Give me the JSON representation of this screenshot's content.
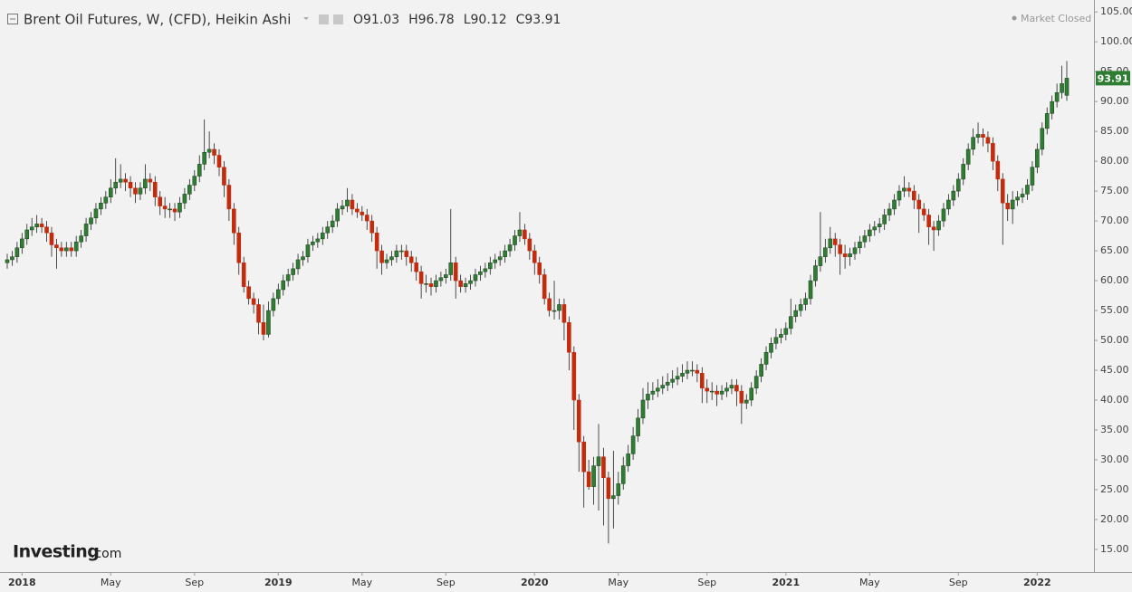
{
  "chart_data": {
    "type": "candlestick",
    "title": "Brent Oil Futures, W, (CFD), Heikin Ashi",
    "legend_values": [
      "O91.03",
      "H96.78",
      "L90.12",
      "C93.91"
    ],
    "status": "Market Closed",
    "watermark": [
      "Investing",
      ".com"
    ],
    "up_color": "#2f7d32",
    "down_color": "#c42a0c",
    "ylim": [
      11.2,
      107.0
    ],
    "yticks": [
      {
        "value": 15,
        "label": "15.00"
      },
      {
        "value": 20,
        "label": "20.00"
      },
      {
        "value": 25,
        "label": "25.00"
      },
      {
        "value": 30,
        "label": "30.00"
      },
      {
        "value": 35,
        "label": "35.00"
      },
      {
        "value": 40,
        "label": "40.00"
      },
      {
        "value": 45,
        "label": "45.00"
      },
      {
        "value": 50,
        "label": "50.00"
      },
      {
        "value": 55,
        "label": "55.00"
      },
      {
        "value": 60,
        "label": "60.00"
      },
      {
        "value": 65,
        "label": "65.00"
      },
      {
        "value": 70,
        "label": "70.00"
      },
      {
        "value": 75,
        "label": "75.00"
      },
      {
        "value": 80,
        "label": "80.00"
      },
      {
        "value": 85,
        "label": "85.00"
      },
      {
        "value": 90,
        "label": "90.00"
      },
      {
        "value": 95,
        "label": "95.00"
      },
      {
        "value": 100,
        "label": "100.00"
      },
      {
        "value": 105,
        "label": "105.00"
      }
    ],
    "xticks": [
      {
        "value": 3,
        "label": "2018"
      },
      {
        "value": 21,
        "label": "May"
      },
      {
        "value": 38,
        "label": "Sep"
      },
      {
        "value": 55,
        "label": "2019"
      },
      {
        "value": 72,
        "label": "May"
      },
      {
        "value": 89,
        "label": "Sep"
      },
      {
        "value": 107,
        "label": "2020"
      },
      {
        "value": 124,
        "label": "May"
      },
      {
        "value": 142,
        "label": "Sep"
      },
      {
        "value": 158,
        "label": "2021"
      },
      {
        "value": 175,
        "label": "May"
      },
      {
        "value": 193,
        "label": "Sep"
      },
      {
        "value": 209,
        "label": "2022"
      }
    ],
    "ohlc": [
      [
        63,
        64.5,
        62,
        63.5
      ],
      [
        63.5,
        65,
        62.5,
        64
      ],
      [
        64,
        66.5,
        63,
        65.5
      ],
      [
        65.5,
        68,
        64.5,
        67
      ],
      [
        67,
        69.5,
        66,
        68.5
      ],
      [
        68.5,
        70.5,
        67.5,
        69
      ],
      [
        69,
        71,
        68,
        69.5
      ],
      [
        69.5,
        70.5,
        68,
        69
      ],
      [
        69,
        70,
        66.5,
        68
      ],
      [
        68,
        69,
        64,
        66
      ],
      [
        66,
        67,
        62,
        65.5
      ],
      [
        65.5,
        66.5,
        64,
        65
      ],
      [
        65,
        66.5,
        64,
        65.5
      ],
      [
        65.5,
        66.5,
        64,
        65
      ],
      [
        65,
        67.5,
        64,
        66.5
      ],
      [
        66.5,
        68.5,
        65.5,
        67.5
      ],
      [
        67.5,
        70.5,
        66.5,
        69.5
      ],
      [
        69.5,
        71.5,
        68.5,
        70.5
      ],
      [
        70.5,
        73,
        69.5,
        72
      ],
      [
        72,
        74,
        71,
        73
      ],
      [
        73,
        75,
        72,
        74
      ],
      [
        74,
        77,
        73,
        75.5
      ],
      [
        75.5,
        80.5,
        74.5,
        76.5
      ],
      [
        76.5,
        79.5,
        75.5,
        77
      ],
      [
        77,
        78,
        75,
        76.5
      ],
      [
        76.5,
        77.5,
        74,
        75.5
      ],
      [
        75.5,
        76.5,
        73,
        74.5
      ],
      [
        74.5,
        76.5,
        73.5,
        75.5
      ],
      [
        75.5,
        79.5,
        74.5,
        77
      ],
      [
        77,
        78,
        75,
        76.5
      ],
      [
        76.5,
        77.5,
        72.5,
        74
      ],
      [
        74,
        75,
        71,
        72.5
      ],
      [
        72.5,
        74,
        70.5,
        72
      ],
      [
        72,
        73,
        70.5,
        72
      ],
      [
        72,
        73,
        70,
        71.5
      ],
      [
        71.5,
        74,
        70.5,
        73
      ],
      [
        73,
        75.5,
        72,
        74.5
      ],
      [
        74.5,
        77,
        73.5,
        76
      ],
      [
        76,
        78.5,
        75,
        77.5
      ],
      [
        77.5,
        81,
        76.5,
        79.5
      ],
      [
        79.5,
        87,
        78.5,
        81.5
      ],
      [
        81.5,
        85,
        80.5,
        82
      ],
      [
        82,
        83,
        79.5,
        81
      ],
      [
        81,
        82,
        77.5,
        79
      ],
      [
        79,
        80,
        74,
        76
      ],
      [
        76,
        77,
        70,
        72
      ],
      [
        72,
        73,
        66,
        68
      ],
      [
        68,
        69,
        61,
        63
      ],
      [
        63,
        64,
        58,
        59
      ],
      [
        59,
        60,
        56,
        57
      ],
      [
        57,
        58,
        54.5,
        56
      ],
      [
        56,
        57,
        51,
        53
      ],
      [
        53,
        56,
        50,
        51
      ],
      [
        51,
        56.5,
        50.5,
        55
      ],
      [
        55,
        58,
        54,
        57
      ],
      [
        57,
        59.5,
        56,
        58.5
      ],
      [
        58.5,
        61,
        57.5,
        60
      ],
      [
        60,
        62,
        59,
        61
      ],
      [
        61,
        63,
        60,
        62
      ],
      [
        62,
        64.5,
        61,
        63.5
      ],
      [
        63.5,
        65,
        62.5,
        64
      ],
      [
        64,
        67,
        63,
        66
      ],
      [
        66,
        67.5,
        65,
        66.5
      ],
      [
        66.5,
        68,
        65.5,
        67
      ],
      [
        67,
        69,
        66,
        68
      ],
      [
        68,
        70,
        67,
        69
      ],
      [
        69,
        71,
        68,
        70
      ],
      [
        70,
        73,
        69,
        72
      ],
      [
        72,
        73.5,
        71,
        72.5
      ],
      [
        72.5,
        75.5,
        71.5,
        73.5
      ],
      [
        73.5,
        74.5,
        71,
        72
      ],
      [
        72,
        73,
        70.5,
        71.5
      ],
      [
        71.5,
        72.5,
        70,
        71
      ],
      [
        71,
        72,
        68.5,
        70
      ],
      [
        70,
        71,
        66.5,
        68
      ],
      [
        68,
        69,
        62,
        65
      ],
      [
        65,
        66,
        61,
        63
      ],
      [
        63,
        64.5,
        62,
        63.5
      ],
      [
        63.5,
        65,
        62.5,
        64
      ],
      [
        64,
        66,
        63,
        65
      ],
      [
        65,
        66,
        63.5,
        65
      ],
      [
        65,
        66,
        62.5,
        64
      ],
      [
        64,
        65,
        61.5,
        63
      ],
      [
        63,
        64,
        60,
        61.5
      ],
      [
        61.5,
        62.5,
        57,
        59.5
      ],
      [
        59.5,
        61,
        58,
        59.5
      ],
      [
        59.5,
        60.5,
        57.5,
        59
      ],
      [
        59,
        61,
        58,
        60
      ],
      [
        60,
        61.5,
        59,
        60.5
      ],
      [
        60.5,
        62,
        59.5,
        61
      ],
      [
        61,
        72,
        60,
        63
      ],
      [
        63,
        64,
        57,
        60
      ],
      [
        60,
        61,
        58,
        59
      ],
      [
        59,
        60.5,
        58,
        59.5
      ],
      [
        59.5,
        61,
        58.5,
        60
      ],
      [
        60,
        62,
        59,
        61
      ],
      [
        61,
        62.5,
        60,
        61.5
      ],
      [
        61.5,
        63,
        60.5,
        62
      ],
      [
        62,
        64,
        61,
        63
      ],
      [
        63,
        64.5,
        62,
        63.5
      ],
      [
        63.5,
        65,
        62.5,
        64
      ],
      [
        64,
        66,
        63,
        65
      ],
      [
        65,
        67,
        64,
        66
      ],
      [
        66,
        68.5,
        65,
        67.5
      ],
      [
        67.5,
        71.5,
        66.5,
        68.5
      ],
      [
        68.5,
        69.5,
        66,
        67
      ],
      [
        67,
        68,
        63.5,
        65
      ],
      [
        65,
        66,
        61,
        63
      ],
      [
        63,
        64,
        59.5,
        61
      ],
      [
        61,
        62,
        56,
        57
      ],
      [
        57,
        58,
        54,
        55
      ],
      [
        55,
        60,
        53.5,
        55
      ],
      [
        55,
        57,
        53.5,
        56
      ],
      [
        56,
        57,
        50,
        53
      ],
      [
        53,
        54,
        45,
        48
      ],
      [
        48,
        49,
        35,
        40
      ],
      [
        40,
        41,
        28,
        33
      ],
      [
        33,
        34,
        22,
        28
      ],
      [
        28,
        30,
        25,
        25.5
      ],
      [
        25.5,
        30.5,
        22.5,
        29
      ],
      [
        29,
        36,
        21.5,
        30.5
      ],
      [
        30.5,
        32,
        19,
        27
      ],
      [
        27,
        28,
        16,
        23.5
      ],
      [
        23.5,
        31.5,
        18.5,
        24
      ],
      [
        24,
        28,
        22.5,
        26
      ],
      [
        26,
        30.5,
        25,
        29
      ],
      [
        29,
        32.5,
        28,
        31
      ],
      [
        31,
        35.5,
        30,
        34
      ],
      [
        34,
        38.5,
        33,
        37
      ],
      [
        37,
        42,
        36,
        40
      ],
      [
        40,
        43,
        38.5,
        41
      ],
      [
        41,
        43,
        40,
        41.5
      ],
      [
        41.5,
        43.5,
        40.5,
        42
      ],
      [
        42,
        44,
        41,
        42.5
      ],
      [
        42.5,
        44.5,
        41.5,
        43
      ],
      [
        43,
        45,
        42,
        43.5
      ],
      [
        43.5,
        45.5,
        42.5,
        44
      ],
      [
        44,
        46,
        43,
        44.5
      ],
      [
        44.5,
        46.5,
        43.5,
        45
      ],
      [
        45,
        46.5,
        44,
        45
      ],
      [
        45,
        46,
        43,
        44.5
      ],
      [
        44.5,
        45.5,
        39.5,
        42
      ],
      [
        42,
        43.5,
        39.5,
        41.5
      ],
      [
        41.5,
        43,
        40,
        41.5
      ],
      [
        41.5,
        42.5,
        39,
        41
      ],
      [
        41,
        42.5,
        40,
        41.5
      ],
      [
        41.5,
        43,
        40.5,
        42
      ],
      [
        42,
        43.5,
        41,
        42.5
      ],
      [
        42.5,
        43.5,
        39,
        41.5
      ],
      [
        41.5,
        42.5,
        36,
        39.5
      ],
      [
        39.5,
        41,
        38.5,
        40
      ],
      [
        40,
        43,
        39,
        42
      ],
      [
        42,
        45,
        41,
        44
      ],
      [
        44,
        47,
        43,
        46
      ],
      [
        46,
        49,
        45,
        48
      ],
      [
        48,
        50.5,
        47,
        49.5
      ],
      [
        49.5,
        52,
        48.5,
        50.5
      ],
      [
        50.5,
        52,
        49.5,
        51
      ],
      [
        51,
        53,
        50,
        52
      ],
      [
        52,
        57,
        51,
        54
      ],
      [
        54,
        56,
        53,
        55
      ],
      [
        55,
        57,
        54,
        56
      ],
      [
        56,
        58,
        55,
        57
      ],
      [
        57,
        61,
        56,
        60
      ],
      [
        60,
        63.5,
        59,
        62.5
      ],
      [
        62.5,
        71.5,
        61.5,
        64
      ],
      [
        64,
        67,
        63,
        65.5
      ],
      [
        65.5,
        69,
        64.5,
        67
      ],
      [
        67,
        68,
        64,
        66
      ],
      [
        66,
        67,
        61,
        64.5
      ],
      [
        64.5,
        66,
        62,
        64
      ],
      [
        64,
        65.5,
        62.5,
        64.5
      ],
      [
        64.5,
        66.5,
        63.5,
        65.5
      ],
      [
        65.5,
        67.5,
        64.5,
        66.5
      ],
      [
        66.5,
        68.5,
        65.5,
        67.5
      ],
      [
        67.5,
        69.5,
        66.5,
        68.5
      ],
      [
        68.5,
        70,
        67.5,
        69
      ],
      [
        69,
        70.5,
        68,
        69.5
      ],
      [
        69.5,
        72,
        68.5,
        71
      ],
      [
        71,
        73,
        70,
        72
      ],
      [
        72,
        74.5,
        71,
        73.5
      ],
      [
        73.5,
        76,
        72.5,
        75
      ],
      [
        75,
        77.5,
        74,
        75.5
      ],
      [
        75.5,
        76.5,
        74,
        75
      ],
      [
        75,
        76,
        72,
        73.5
      ],
      [
        73.5,
        74.5,
        68,
        72
      ],
      [
        72,
        73,
        70,
        71
      ],
      [
        71,
        72,
        66,
        69
      ],
      [
        69,
        70,
        65,
        68.5
      ],
      [
        68.5,
        71,
        67.5,
        70
      ],
      [
        70,
        73,
        69,
        72
      ],
      [
        72,
        74.5,
        71,
        73.5
      ],
      [
        73.5,
        76,
        72.5,
        75
      ],
      [
        75,
        78,
        74,
        77
      ],
      [
        77,
        80.5,
        76,
        79.5
      ],
      [
        79.5,
        83,
        78.5,
        82
      ],
      [
        82,
        85.5,
        81,
        84
      ],
      [
        84,
        86.5,
        83,
        84.5
      ],
      [
        84.5,
        85.5,
        82.5,
        84
      ],
      [
        84,
        85,
        81.5,
        83
      ],
      [
        83,
        84,
        78.5,
        80
      ],
      [
        80,
        81,
        75,
        77
      ],
      [
        77,
        78,
        66,
        73
      ],
      [
        73,
        74.5,
        70,
        72
      ],
      [
        72,
        75,
        69.5,
        73.5
      ],
      [
        73.5,
        75,
        72.5,
        74
      ],
      [
        74,
        75.5,
        73,
        74.5
      ],
      [
        74.5,
        77,
        73.5,
        76
      ],
      [
        76,
        80,
        75,
        79
      ],
      [
        79,
        83,
        78,
        82
      ],
      [
        82,
        86.5,
        81,
        85.5
      ],
      [
        85.5,
        89,
        84.5,
        88
      ],
      [
        88,
        91,
        87,
        90
      ],
      [
        90,
        93,
        89,
        91.5
      ],
      [
        91.5,
        96,
        90.5,
        93
      ],
      [
        91.03,
        96.78,
        90.12,
        93.91
      ]
    ]
  }
}
